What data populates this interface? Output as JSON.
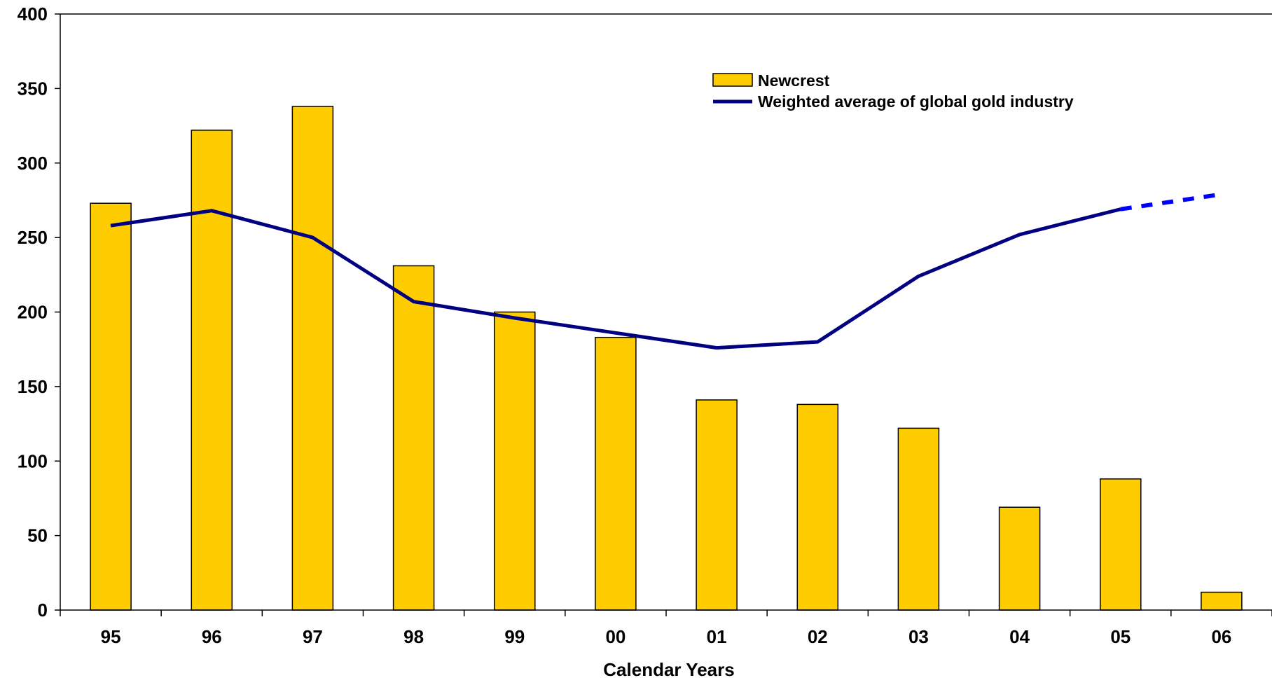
{
  "chart_data": {
    "type": "bar",
    "categories": [
      "95",
      "96",
      "97",
      "98",
      "99",
      "00",
      "01",
      "02",
      "03",
      "04",
      "05",
      "06"
    ],
    "series": [
      {
        "name": "Newcrest",
        "type": "bar",
        "color": "#FFCC00",
        "values": [
          273,
          322,
          338,
          231,
          200,
          183,
          141,
          138,
          122,
          69,
          88,
          12
        ]
      },
      {
        "name": "Weighted average of global gold industry",
        "type": "line",
        "color": "#000080",
        "values": [
          258,
          268,
          250,
          207,
          196,
          186,
          176,
          180,
          224,
          252,
          269,
          null
        ],
        "projection": {
          "color": "#0000FF",
          "style": "dashed",
          "from_category": "05",
          "to_category": "06",
          "values": [
            269,
            279
          ]
        }
      }
    ],
    "title": "",
    "xlabel": "Calendar Years",
    "ylabel": "",
    "ylim": [
      0,
      400
    ],
    "yticks": [
      0,
      50,
      100,
      150,
      200,
      250,
      300,
      350,
      400
    ],
    "legend_position": "top-center",
    "grid": false
  }
}
